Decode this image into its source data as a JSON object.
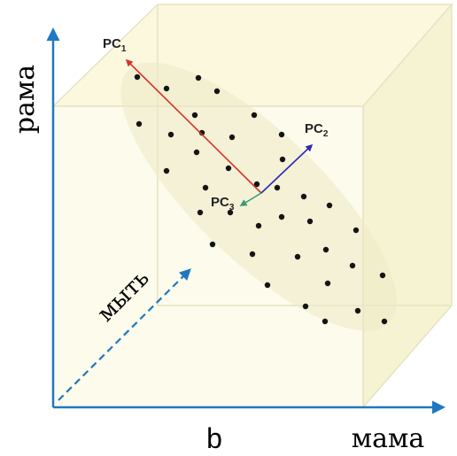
{
  "labels": {
    "vertical_axis": "рама",
    "depth_axis": "мыть",
    "horizontal_axis": "мама",
    "bottom_letter": "b"
  },
  "components": [
    {
      "name": "PC",
      "sub": "1",
      "color": "#d8322e"
    },
    {
      "name": "PC",
      "sub": "2",
      "color": "#2a2ab4"
    },
    {
      "name": "PC",
      "sub": "3",
      "color": "#3a9a78"
    }
  ],
  "colors": {
    "axis": "#1f78c2",
    "cube_fill": "#fbf8de",
    "cube_edge": "#e6e3c2",
    "cloud": "#ece9c6",
    "point": "#141414"
  }
}
